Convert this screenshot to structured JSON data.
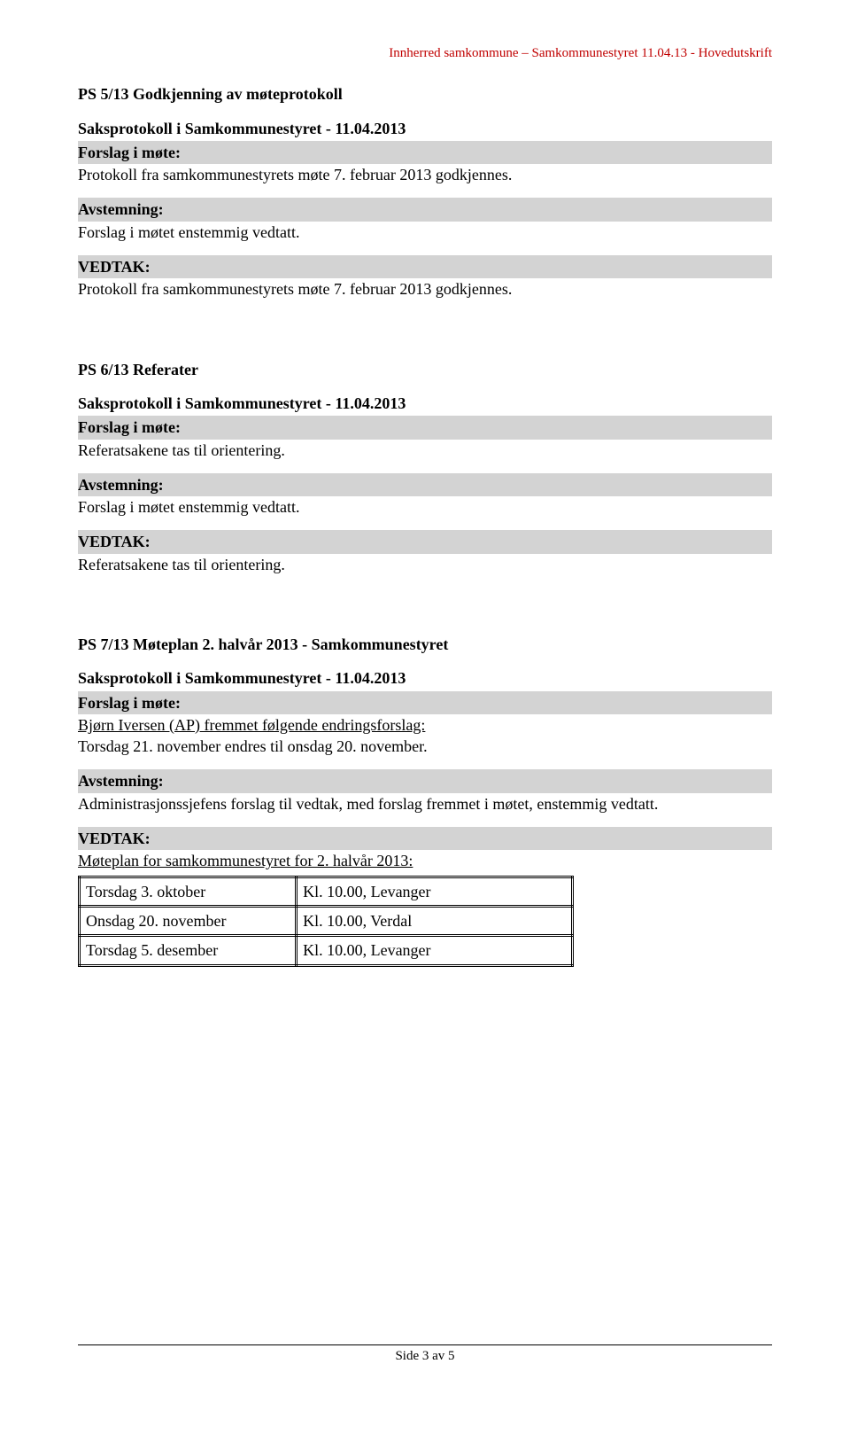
{
  "header": {
    "org_doc_line": "Innherred samkommune – Samkommunestyret 11.04.13 - Hovedutskrift",
    "header_color": "#c00000"
  },
  "sections": [
    {
      "title": "PS 5/13 Godkjenning av møteprotokoll",
      "subtitle": "Saksprotokoll i Samkommunestyret - 11.04.2013",
      "forslag_label": "Forslag i møte:",
      "forslag_text": "Protokoll fra samkommunestyrets møte 7. februar 2013 godkjennes.",
      "avstemning_label": "Avstemning:",
      "avstemning_text": "Forslag i møtet enstemmig vedtatt.",
      "vedtak_label": "VEDTAK:",
      "vedtak_text": "Protokoll fra samkommunestyrets møte 7. februar 2013 godkjennes."
    },
    {
      "title": "PS 6/13 Referater",
      "subtitle": "Saksprotokoll i Samkommunestyret - 11.04.2013",
      "forslag_label": "Forslag i møte:",
      "forslag_text": "Referatsakene tas til orientering.",
      "avstemning_label": "Avstemning:",
      "avstemning_text": "Forslag i møtet enstemmig vedtatt.",
      "vedtak_label": "VEDTAK:",
      "vedtak_text": "Referatsakene tas til orientering."
    },
    {
      "title": "PS 7/13 Møteplan 2. halvår 2013 - Samkommunestyret",
      "subtitle": "Saksprotokoll i Samkommunestyret - 11.04.2013",
      "forslag_label": "Forslag i møte:",
      "forslag_proposer": "Bjørn Iversen (AP) fremmet følgende endringsforslag:",
      "forslag_text": "Torsdag 21. november endres til onsdag 20. november.",
      "avstemning_label": "Avstemning:",
      "avstemning_text": "Administrasjonssjefens forslag til vedtak, med forslag fremmet i møtet, enstemmig vedtatt.",
      "vedtak_label": "VEDTAK:",
      "vedtak_intro": "Møteplan for samkommunestyret for 2. halvår 2013:",
      "schedule": {
        "rows": [
          [
            "Torsdag 3. oktober",
            "Kl. 10.00, Levanger"
          ],
          [
            "Onsdag 20. november",
            "Kl. 10.00, Verdal"
          ],
          [
            "Torsdag 5. desember",
            "Kl. 10.00, Levanger"
          ]
        ]
      }
    }
  ],
  "footer": {
    "page_indicator": "Side 3 av 5"
  },
  "style": {
    "bg": "#ffffff",
    "text_color": "#000000",
    "graybar_bg": "#d3d3d3",
    "font_family": "Times New Roman"
  }
}
